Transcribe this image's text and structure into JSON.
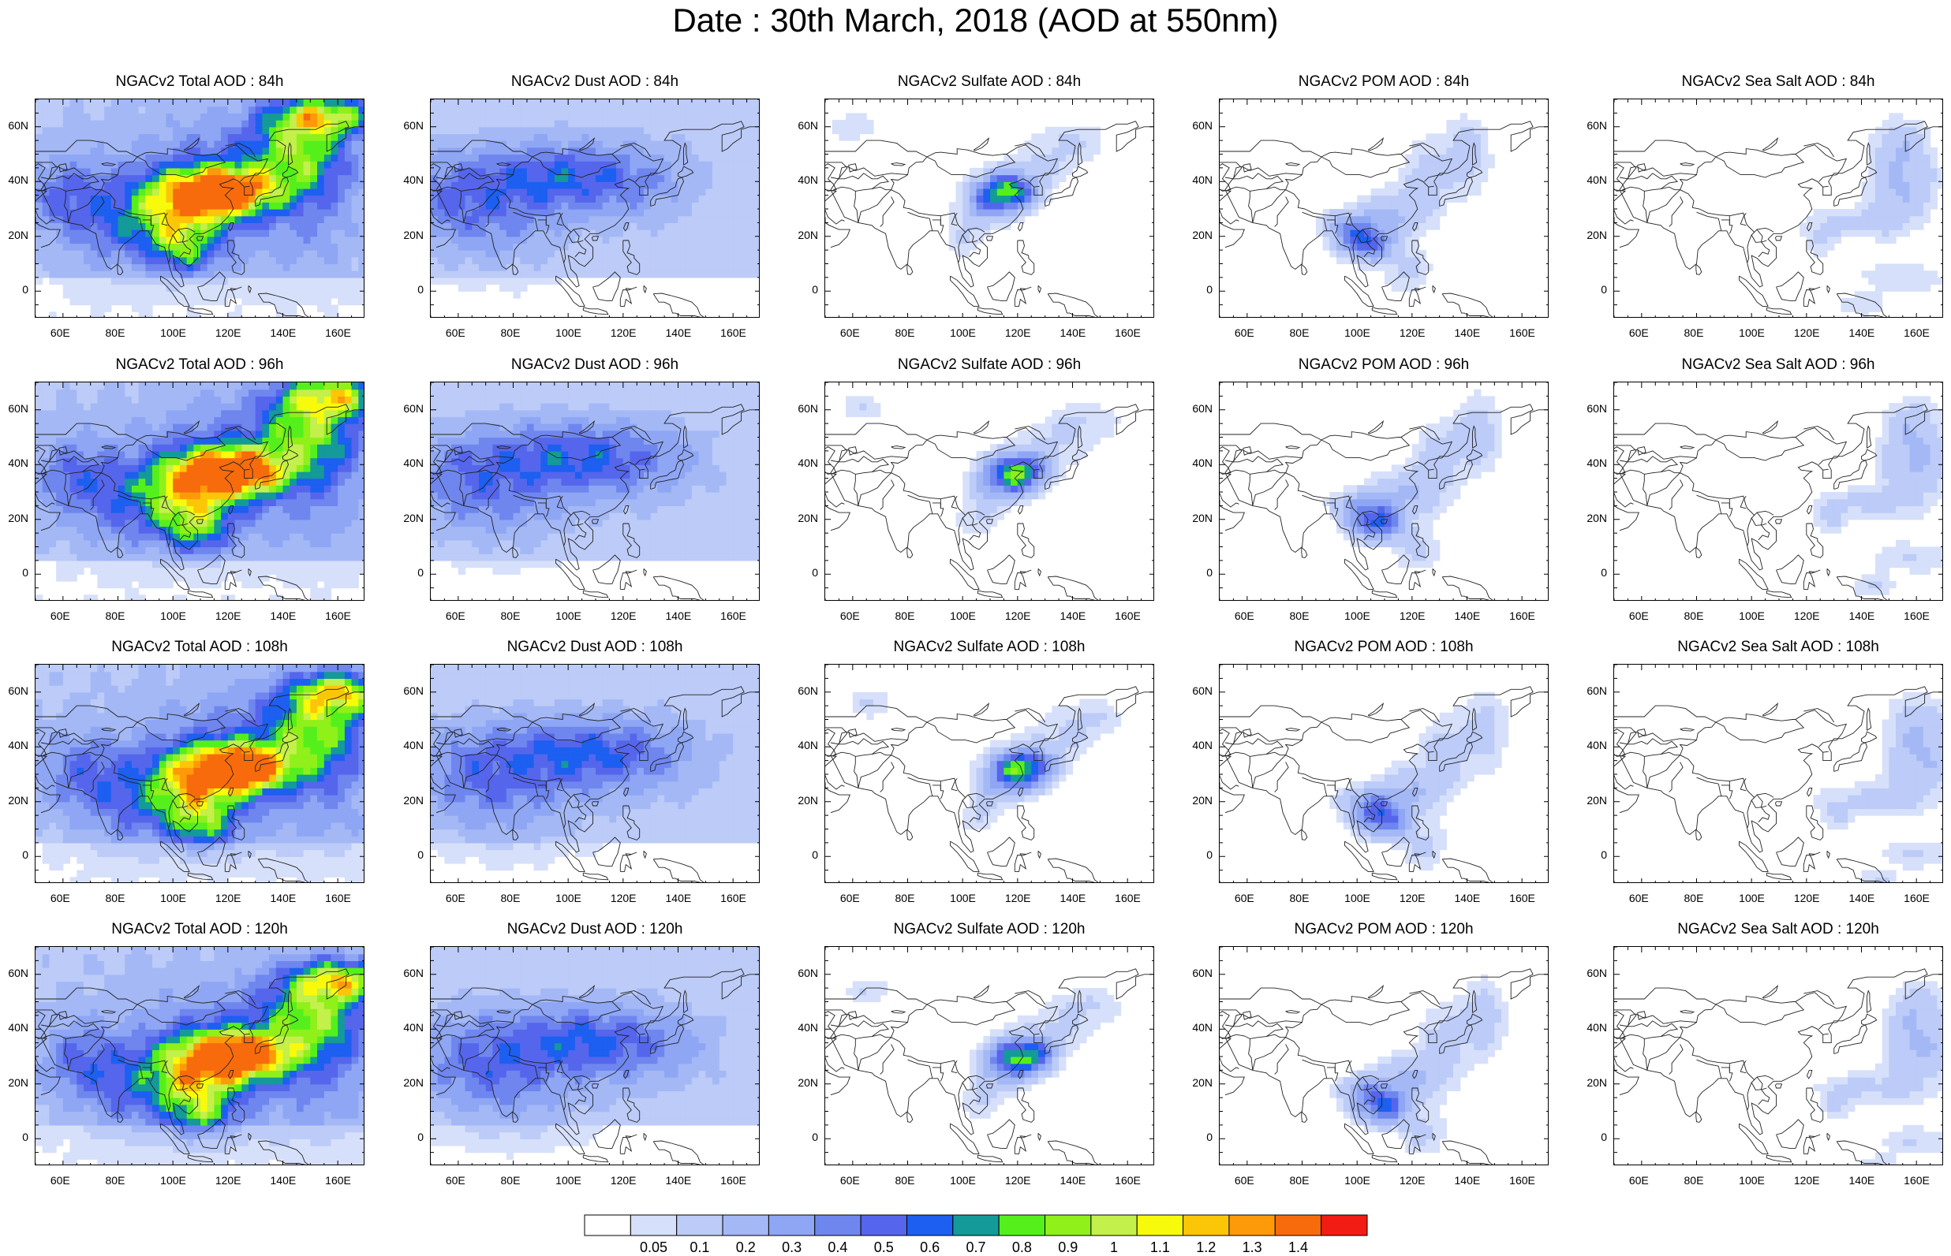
{
  "title": "Date : 30th March, 2018 (AOD at 550nm)",
  "x_ticks": [
    "60E",
    "80E",
    "100E",
    "120E",
    "140E",
    "160E"
  ],
  "y_ticks": [
    "60N",
    "40N",
    "20N",
    "0"
  ],
  "panels": [
    {
      "title": "NGACv2 Total AOD : 84h",
      "species": "total",
      "hour": 84
    },
    {
      "title": "NGACv2 Dust AOD : 84h",
      "species": "dust",
      "hour": 84
    },
    {
      "title": "NGACv2 Sulfate AOD : 84h",
      "species": "sulfate",
      "hour": 84
    },
    {
      "title": "NGACv2 POM AOD : 84h",
      "species": "pom",
      "hour": 84
    },
    {
      "title": "NGACv2 Sea Salt AOD : 84h",
      "species": "seasalt",
      "hour": 84
    },
    {
      "title": "NGACv2 Total AOD : 96h",
      "species": "total",
      "hour": 96
    },
    {
      "title": "NGACv2 Dust AOD : 96h",
      "species": "dust",
      "hour": 96
    },
    {
      "title": "NGACv2 Sulfate AOD : 96h",
      "species": "sulfate",
      "hour": 96
    },
    {
      "title": "NGACv2 POM AOD : 96h",
      "species": "pom",
      "hour": 96
    },
    {
      "title": "NGACv2 Sea Salt AOD : 96h",
      "species": "seasalt",
      "hour": 96
    },
    {
      "title": "NGACv2 Total AOD : 108h",
      "species": "total",
      "hour": 108
    },
    {
      "title": "NGACv2 Dust AOD : 108h",
      "species": "dust",
      "hour": 108
    },
    {
      "title": "NGACv2 Sulfate AOD : 108h",
      "species": "sulfate",
      "hour": 108
    },
    {
      "title": "NGACv2 POM AOD : 108h",
      "species": "pom",
      "hour": 108
    },
    {
      "title": "NGACv2 Sea Salt AOD : 108h",
      "species": "seasalt",
      "hour": 108
    },
    {
      "title": "NGACv2 Total AOD : 120h",
      "species": "total",
      "hour": 120
    },
    {
      "title": "NGACv2 Dust AOD : 120h",
      "species": "dust",
      "hour": 120
    },
    {
      "title": "NGACv2 Sulfate AOD : 120h",
      "species": "sulfate",
      "hour": 120
    },
    {
      "title": "NGACv2 POM AOD : 120h",
      "species": "pom",
      "hour": 120
    },
    {
      "title": "NGACv2 Sea Salt  AOD : 120h",
      "species": "seasalt",
      "hour": 120
    }
  ],
  "colorbar": {
    "labels": [
      "0.05",
      "0.1",
      "0.2",
      "0.3",
      "0.4",
      "0.5",
      "0.6",
      "0.7",
      "0.8",
      "0.9",
      "1",
      "1.1",
      "1.2",
      "1.3",
      "1.4"
    ],
    "colors": [
      "#ffffff",
      "#d7e0fa",
      "#bccbf7",
      "#a4b8f6",
      "#8ea6f4",
      "#6f86ef",
      "#5566ec",
      "#1d5ff0",
      "#139a99",
      "#55f01c",
      "#90f01a",
      "#c3f04a",
      "#f8fa0b",
      "#fcc608",
      "#fc9a0a",
      "#f86b0c",
      "#f21c14"
    ]
  }
}
